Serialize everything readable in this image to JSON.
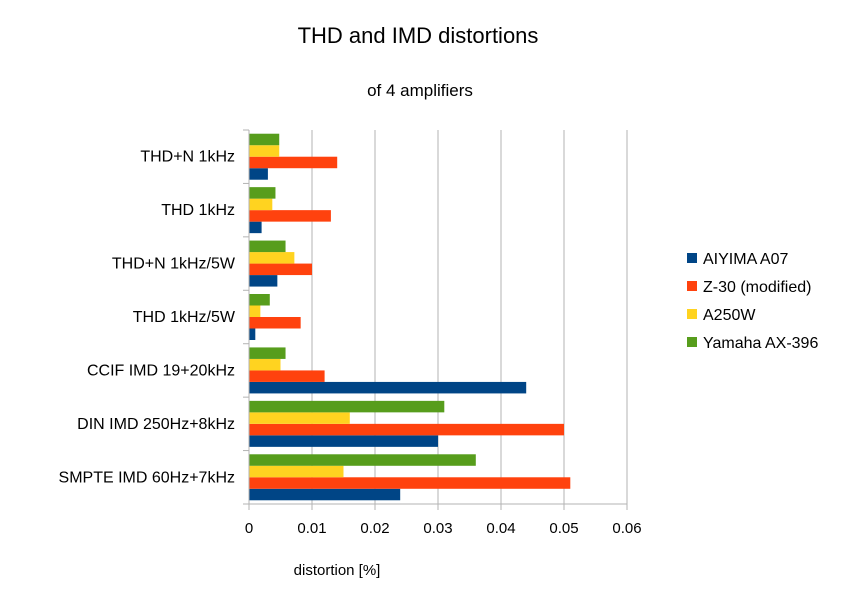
{
  "chart_data": {
    "type": "bar",
    "orientation": "horizontal",
    "title": "THD and IMD distortions",
    "subtitle": "of 4 amplifiers",
    "xlabel": "distortion [%]",
    "ylabel": "",
    "xlim": [
      0,
      0.06
    ],
    "x_ticks": [
      "0",
      "0.01",
      "0.02",
      "0.03",
      "0.04",
      "0.05",
      "0.06"
    ],
    "grid": true,
    "legend_position": "right",
    "categories": [
      "THD+N 1kHz",
      "THD 1kHz",
      "THD+N 1kHz/5W",
      "THD 1kHz/5W",
      "CCIF IMD 19+20kHz",
      "DIN IMD 250Hz+8kHz",
      "SMPTE IMD 60Hz+7kHz"
    ],
    "series": [
      {
        "name": "AIYIMA A07",
        "color": "#004586",
        "values": [
          0.003,
          0.002,
          0.0045,
          0.001,
          0.044,
          0.03,
          0.024
        ]
      },
      {
        "name": "Z-30 (modified)",
        "color": "#ff420e",
        "values": [
          0.014,
          0.013,
          0.01,
          0.0082,
          0.012,
          0.05,
          0.051
        ]
      },
      {
        "name": "A250W",
        "color": "#ffd320",
        "values": [
          0.0048,
          0.0037,
          0.0072,
          0.0018,
          0.005,
          0.016,
          0.015
        ]
      },
      {
        "name": "Yamaha AX-396",
        "color": "#579d1c",
        "values": [
          0.0048,
          0.0042,
          0.0058,
          0.0033,
          0.0058,
          0.031,
          0.036
        ]
      }
    ]
  }
}
